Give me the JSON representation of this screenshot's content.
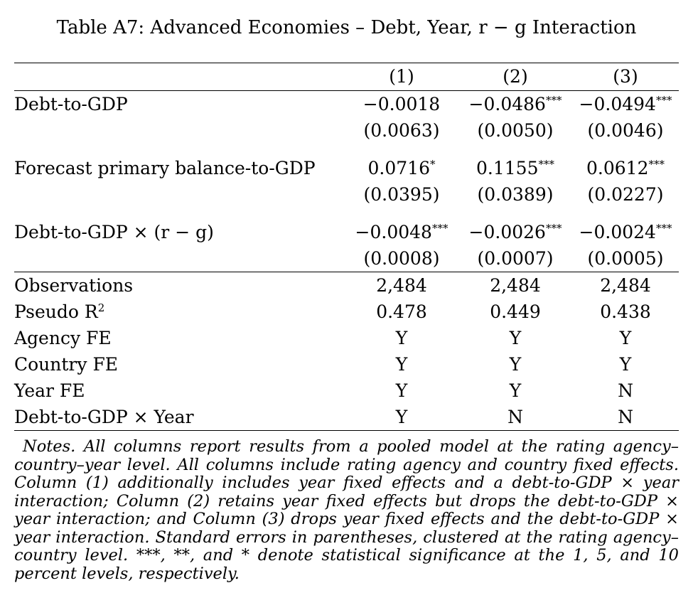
{
  "table": {
    "title": "Table A7: Advanced Economies – Debt, Year, r − g Interaction",
    "columns": [
      "(1)",
      "(2)",
      "(3)"
    ],
    "coef_rows": [
      {
        "label": "Debt-to-GDP",
        "coefs": [
          {
            "value": "−0.0018",
            "stars": ""
          },
          {
            "value": "−0.0486",
            "stars": "***"
          },
          {
            "value": "−0.0494",
            "stars": "***"
          }
        ],
        "ses": [
          "(0.0063)",
          "(0.0050)",
          "(0.0046)"
        ]
      },
      {
        "label": "Forecast primary balance-to-GDP",
        "coefs": [
          {
            "value": "0.0716",
            "stars": "*"
          },
          {
            "value": "0.1155",
            "stars": "***"
          },
          {
            "value": "0.0612",
            "stars": "***"
          }
        ],
        "ses": [
          "(0.0395)",
          "(0.0389)",
          "(0.0227)"
        ]
      },
      {
        "label": "Debt-to-GDP × (r − g)",
        "coefs": [
          {
            "value": "−0.0048",
            "stars": "***"
          },
          {
            "value": "−0.0026",
            "stars": "***"
          },
          {
            "value": "−0.0024",
            "stars": "***"
          }
        ],
        "ses": [
          "(0.0008)",
          "(0.0007)",
          "(0.0005)"
        ]
      }
    ],
    "stat_rows": [
      {
        "label": "Observations",
        "values": [
          "2,484",
          "2,484",
          "2,484"
        ]
      },
      {
        "label": "Pseudo R",
        "label_sup": "2",
        "values": [
          "0.478",
          "0.449",
          "0.438"
        ]
      },
      {
        "label": "Agency FE",
        "values": [
          "Y",
          "Y",
          "Y"
        ]
      },
      {
        "label": "Country FE",
        "values": [
          "Y",
          "Y",
          "Y"
        ]
      },
      {
        "label": "Year FE",
        "values": [
          "Y",
          "Y",
          "N"
        ]
      },
      {
        "label": "Debt-to-GDP × Year",
        "values": [
          "Y",
          "N",
          "N"
        ]
      }
    ],
    "notes": "Notes. All columns report results from a pooled model at the rating agency–country–year level. All columns include rating agency and country fixed effects. Column (1) additionally includes year fixed effects and a debt-to-GDP × year interaction; Column (2) retains year fixed effects but drops the debt-to-GDP × year interaction; and Column (3) drops year fixed effects and the debt-to-GDP × year interaction. Standard errors in parentheses, clustered at the rating agency–country level. ***, **, and * denote statistical significance at the 1, 5, and 10 percent levels, respectively."
  }
}
